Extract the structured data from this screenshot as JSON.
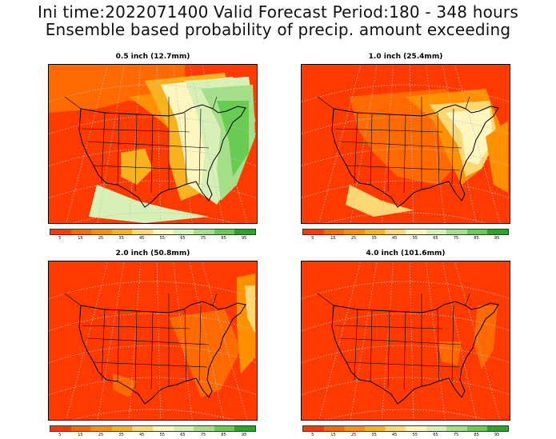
{
  "header": {
    "line1": "Ini time:2022071400  Valid Forecast Period:180 - 348 hours",
    "line2": "Ensemble based probability of precip. amount exceeding"
  },
  "colors": {
    "c5": "#ff3a00",
    "c15": "#ff6a00",
    "c25": "#ff9100",
    "c35": "#f7b21e",
    "c45": "#fbd873",
    "c55": "#fdf6bf",
    "c65": "#d7f0b6",
    "c75": "#a4e088",
    "c85": "#68cc52",
    "c95": "#2aa52a",
    "boundary": "#000000",
    "grid": "#bfbfbf"
  },
  "legend": {
    "ticks": [
      "5",
      "15",
      "25",
      "35",
      "45",
      "55",
      "65",
      "75",
      "85",
      "95"
    ]
  },
  "panels": [
    {
      "title": "0.5 inch (12.7mm)",
      "scheme": "wet"
    },
    {
      "title": "1.0 inch (25.4mm)",
      "scheme": "mid"
    },
    {
      "title": "2.0 inch (50.8mm)",
      "scheme": "low"
    },
    {
      "title": "4.0 inch (101.6mm)",
      "scheme": "dry"
    }
  ]
}
